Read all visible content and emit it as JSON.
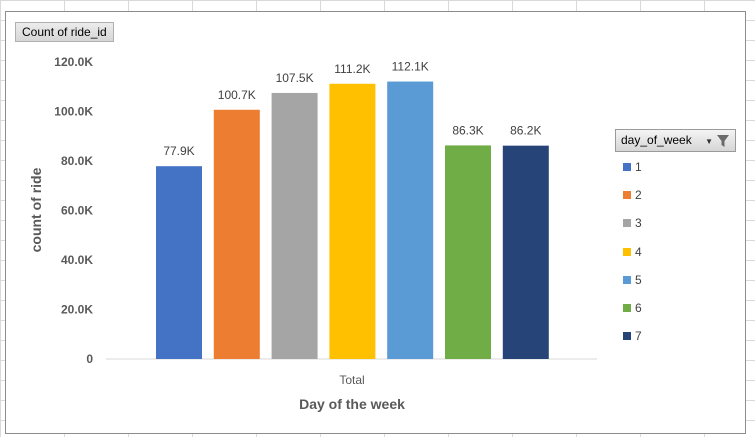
{
  "chart_data": {
    "type": "bar",
    "field_button": "Count  of ride_id",
    "ylabel": "count of ride",
    "xlabel": "Day of the week",
    "categories": [
      "Total"
    ],
    "ylim": [
      0,
      120000
    ],
    "yticks": [
      0,
      20000,
      40000,
      60000,
      80000,
      100000,
      120000
    ],
    "ytick_labels": [
      "0",
      "20.0K",
      "40.0K",
      "60.0K",
      "80.0K",
      "100.0K",
      "120.0K"
    ],
    "legend_title": "day_of_week",
    "legend_position": "right",
    "series": [
      {
        "name": "1",
        "values": [
          77900
        ],
        "label": "77.9K",
        "color": "#4472C4"
      },
      {
        "name": "2",
        "values": [
          100700
        ],
        "label": "100.7K",
        "color": "#ED7D31"
      },
      {
        "name": "3",
        "values": [
          107500
        ],
        "label": "107.5K",
        "color": "#A5A5A5"
      },
      {
        "name": "4",
        "values": [
          111200
        ],
        "label": "111.2K",
        "color": "#FFC000"
      },
      {
        "name": "5",
        "values": [
          112100
        ],
        "label": "112.1K",
        "color": "#5B9BD5"
      },
      {
        "name": "6",
        "values": [
          86300
        ],
        "label": "86.3K",
        "color": "#70AD47"
      },
      {
        "name": "7",
        "values": [
          86200
        ],
        "label": "86.2K",
        "color": "#264478"
      }
    ]
  }
}
